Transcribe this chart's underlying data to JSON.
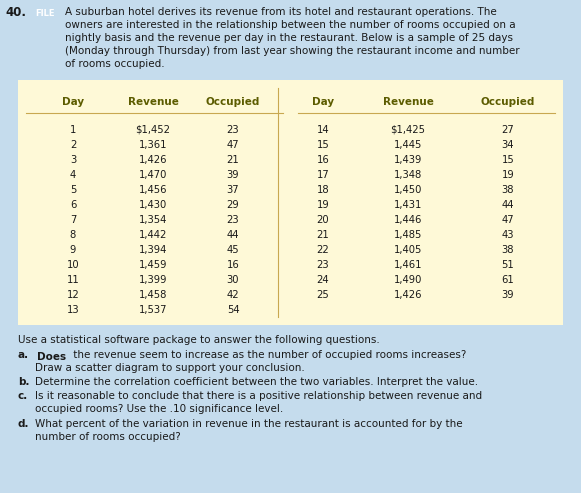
{
  "title_number": "40.",
  "file_label": "FILE",
  "intro_lines": [
    "A suburban hotel derives its revenue from its hotel and restaurant operations. The",
    "owners are interested in the relationship between the number of rooms occupied on a",
    "nightly basis and the revenue per day in the restaurant. Below is a sample of 25 days",
    "(Monday through Thursday) from last year showing the restaurant income and number",
    "of rooms occupied."
  ],
  "table_headers": [
    "Day",
    "Revenue",
    "Occupied",
    "Day",
    "Revenue",
    "Occupied"
  ],
  "table_data_left": [
    [
      "1",
      "$1,452",
      "23"
    ],
    [
      "2",
      "1,361",
      "47"
    ],
    [
      "3",
      "1,426",
      "21"
    ],
    [
      "4",
      "1,470",
      "39"
    ],
    [
      "5",
      "1,456",
      "37"
    ],
    [
      "6",
      "1,430",
      "29"
    ],
    [
      "7",
      "1,354",
      "23"
    ],
    [
      "8",
      "1,442",
      "44"
    ],
    [
      "9",
      "1,394",
      "45"
    ],
    [
      "10",
      "1,459",
      "16"
    ],
    [
      "11",
      "1,399",
      "30"
    ],
    [
      "12",
      "1,458",
      "42"
    ],
    [
      "13",
      "1,537",
      "54"
    ]
  ],
  "table_data_right": [
    [
      "14",
      "$1,425",
      "27"
    ],
    [
      "15",
      "1,445",
      "34"
    ],
    [
      "16",
      "1,439",
      "15"
    ],
    [
      "17",
      "1,348",
      "19"
    ],
    [
      "18",
      "1,450",
      "38"
    ],
    [
      "19",
      "1,431",
      "44"
    ],
    [
      "20",
      "1,446",
      "47"
    ],
    [
      "21",
      "1,485",
      "43"
    ],
    [
      "22",
      "1,405",
      "38"
    ],
    [
      "23",
      "1,461",
      "51"
    ],
    [
      "24",
      "1,490",
      "61"
    ],
    [
      "25",
      "1,426",
      "39"
    ],
    [
      "",
      "",
      ""
    ]
  ],
  "q_intro": "Use a statistical software package to answer the following questions.",
  "qa_label": "a.",
  "qa_highlight": "Does",
  "qa_line1": " the revenue seem to increase as the number of occupied rooms increases?",
  "qa_line2": "Draw a scatter diagram to support your conclusion.",
  "qb_label": "b.",
  "qb_text": "Determine the correlation coefficient between the two variables. Interpret the value.",
  "qc_label": "c.",
  "qc_line1": "Is it reasonable to conclude that there is a positive relationship between revenue and",
  "qc_line2": "occupied rooms? Use the .10 significance level.",
  "qd_label": "d.",
  "qd_line1": "What percent of the variation in revenue in the restaurant is accounted for by the",
  "qd_line2": "number of rooms occupied?",
  "bg_color": "#c5dced",
  "table_bg": "#fef9d7",
  "table_border": "#c8a850",
  "header_color": "#5c5c00",
  "text_color": "#1a1a1a",
  "file_bg": "#1e5fa8",
  "file_fg": "#ffffff",
  "highlight_bg": "#7ab3d4",
  "bold_label_color": "#1a1a1a"
}
